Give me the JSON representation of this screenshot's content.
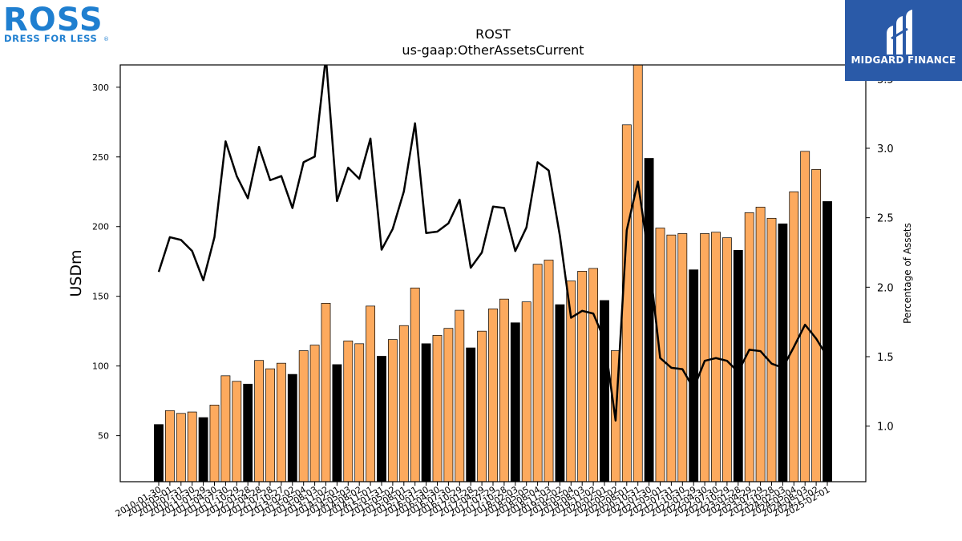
{
  "logos": {
    "ross_word": "ROSS",
    "ross_tagline": "DRESS FOR LESS",
    "ross_mark": "®",
    "midgard_name": "MIDGARD FINANCE",
    "midgard_icon": "midgard-logo-icon"
  },
  "chart_data": {
    "type": "bar",
    "title": "ROST",
    "subtitle": "us-gaap:OtherAssetsCurrent",
    "ylabel": "USDm",
    "y2label": "Percentage of Assets",
    "ylim": [
      17,
      316
    ],
    "y2lim": [
      0.6,
      3.6
    ],
    "yticks": [
      50,
      100,
      150,
      200,
      250,
      300
    ],
    "y2ticks": [
      1.0,
      1.5,
      2.0,
      2.5,
      3.0,
      3.5
    ],
    "colors": {
      "bar": "#fdaa5e",
      "bar_highlight": "#000000",
      "line": "#000000"
    },
    "categories": [
      "2010-01-30",
      "2010-05-01",
      "2010-07-31",
      "2010-10-30",
      "2011-01-29",
      "2011-04-30",
      "2011-07-30",
      "2011-10-29",
      "2012-01-28",
      "2012-04-28",
      "2012-07-28",
      "2012-10-27",
      "2013-02-02",
      "2013-05-04",
      "2013-08-03",
      "2013-11-02",
      "2014-02-01",
      "2014-05-03",
      "2014-08-02",
      "2014-11-01",
      "2015-01-31",
      "2015-05-02",
      "2015-08-01",
      "2015-10-31",
      "2016-01-30",
      "2016-04-30",
      "2016-07-30",
      "2016-10-29",
      "2017-01-28",
      "2017-04-29",
      "2017-07-29",
      "2017-10-28",
      "2018-02-03",
      "2018-05-05",
      "2018-08-04",
      "2018-11-03",
      "2019-02-02",
      "2019-05-04",
      "2019-08-03",
      "2019-11-02",
      "2020-02-01",
      "2020-05-02",
      "2020-08-01",
      "2020-10-31",
      "2021-01-30",
      "2021-05-01",
      "2021-07-31",
      "2021-10-30",
      "2022-01-29",
      "2022-04-30",
      "2022-07-30",
      "2022-10-29",
      "2023-01-28",
      "2023-04-29",
      "2023-07-29",
      "2023-10-28",
      "2024-02-03",
      "2024-05-04",
      "2024-08-03",
      "2024-11-02",
      "2025-02-01"
    ],
    "tick_labels": [
      "2010-01-30",
      "2010-05-01",
      "2010-07-31",
      "2010-10-30",
      "2011-01-29",
      "2011-04-30",
      "2011-07-30",
      "2011-10-29",
      "2012-01-28",
      "2012-04-28",
      "2012-07-28",
      "2012-10-27",
      "2013-02-02",
      "2013-05-04",
      "2013-08-03",
      "2013-11-02",
      "2014-02-01",
      "2014-05-03",
      "2014-08-02",
      "2014-11-01",
      "2015-01-31",
      "2015-05-02",
      "2015-08-01",
      "2015-10-31",
      "2016-01-30",
      "2016-04-30",
      "2016-07-30",
      "2016-10-29",
      "2017-01-28",
      "2017-04-29",
      "2017-07-29",
      "2017-10-28",
      "2018-02-03",
      "2018-05-05",
      "2018-08-04",
      "2018-11-03",
      "2019-02-02",
      "2019-05-04",
      "2019-08-03",
      "2019-11-02",
      "2020-02-01",
      "2020-05-02",
      "2020-08-01",
      "2020-10-31",
      "2021-01-30",
      "2021-05-01",
      "2021-07-31",
      "2021-10-30",
      "2022-01-29",
      "2022-04-30",
      "2022-07-30",
      "2022-10-29",
      "2023-01-28",
      "2023-04-29",
      "2023-07-29",
      "2023-10-28",
      "2024-02-03",
      "2024-05-04",
      "2024-08-03",
      "2024-11-02",
      "2025-02-01"
    ],
    "series": [
      {
        "kind": "bar",
        "values": [
          58,
          68,
          66,
          67,
          63,
          72,
          93,
          89,
          87,
          104,
          98,
          102,
          94,
          111,
          115,
          145,
          101,
          118,
          116,
          143,
          107,
          119,
          129,
          156,
          116,
          122,
          127,
          140,
          113,
          125,
          141,
          148,
          131,
          146,
          173,
          176,
          144,
          161,
          168,
          170,
          147,
          111,
          273,
          316,
          249,
          199,
          194,
          195,
          169,
          195,
          196,
          192,
          183,
          210,
          214,
          206,
          202,
          225,
          254,
          241,
          218
        ],
        "highlight": [
          true,
          false,
          false,
          false,
          true,
          false,
          false,
          false,
          true,
          false,
          false,
          false,
          true,
          false,
          false,
          false,
          true,
          false,
          false,
          false,
          true,
          false,
          false,
          false,
          true,
          false,
          false,
          false,
          true,
          false,
          false,
          false,
          true,
          false,
          false,
          false,
          true,
          false,
          false,
          false,
          true,
          false,
          false,
          false,
          true,
          false,
          false,
          false,
          true,
          false,
          false,
          false,
          true,
          false,
          false,
          false,
          true,
          false,
          false,
          false,
          true
        ]
      },
      {
        "kind": "line",
        "axis": "right",
        "values": [
          2.11,
          2.36,
          2.34,
          2.26,
          2.05,
          2.36,
          3.05,
          2.8,
          2.64,
          3.01,
          2.77,
          2.8,
          2.57,
          2.9,
          2.94,
          3.66,
          2.62,
          2.86,
          2.78,
          3.07,
          2.27,
          2.42,
          2.69,
          3.18,
          2.39,
          2.4,
          2.46,
          2.63,
          2.14,
          2.25,
          2.58,
          2.57,
          2.26,
          2.43,
          2.9,
          2.84,
          2.37,
          1.78,
          1.83,
          1.81,
          1.62,
          1.04,
          2.41,
          2.76,
          2.2,
          1.49,
          1.42,
          1.41,
          1.27,
          1.47,
          1.49,
          1.47,
          1.39,
          1.55,
          1.54,
          1.45,
          1.42,
          1.57,
          1.73,
          1.63,
          1.5
        ]
      }
    ],
    "grid": false,
    "legend": "none"
  }
}
